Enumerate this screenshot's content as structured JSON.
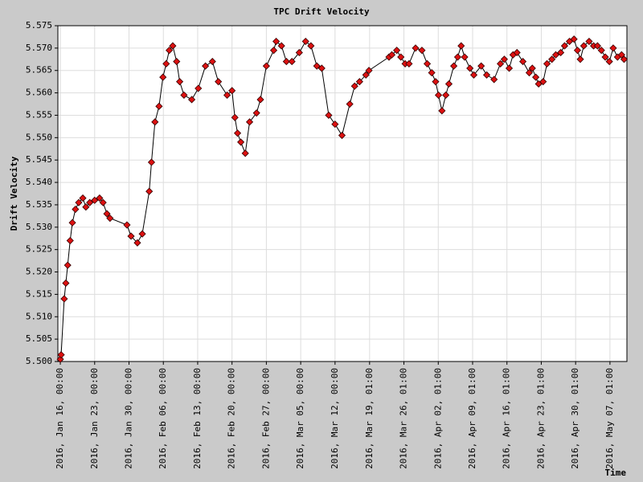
{
  "chart_data": {
    "type": "line",
    "title": "TPC Drift Velocity",
    "y_label": "Drift Velocity",
    "x_label": "Time",
    "color": "#dd1111",
    "line_color": "#000000",
    "grid": true,
    "xlim": [
      "2016-01-15T12:00",
      "2016-05-10T12:00"
    ],
    "ylim": [
      5.5,
      5.575
    ],
    "yticks": [
      {
        "value": 5.5,
        "label": "5.500"
      },
      5.505,
      {
        "value": 5.51,
        "label": "5.510"
      },
      5.515,
      {
        "value": 5.52,
        "label": "5.520"
      },
      5.525,
      {
        "value": 5.53,
        "label": "5.530"
      },
      5.535,
      {
        "value": 5.54,
        "label": "5.540"
      },
      5.545,
      {
        "value": 5.55,
        "label": "5.550"
      },
      5.555,
      {
        "value": 5.56,
        "label": "5.560"
      },
      5.565,
      {
        "value": 5.57,
        "label": "5.570"
      },
      5.575
    ],
    "xticks": [
      {
        "value": "2016-01-16T00:00",
        "label": "2016, Jan 16, 00:00"
      },
      {
        "value": "2016-01-23T00:00",
        "label": "2016, Jan 23, 00:00"
      },
      {
        "value": "2016-01-30T00:00",
        "label": "2016, Jan 30, 00:00"
      },
      {
        "value": "2016-02-06T00:00",
        "label": "2016, Feb 06, 00:00"
      },
      {
        "value": "2016-02-13T00:00",
        "label": "2016, Feb 13, 00:00"
      },
      {
        "value": "2016-02-20T00:00",
        "label": "2016, Feb 20, 00:00"
      },
      {
        "value": "2016-02-27T00:00",
        "label": "2016, Feb 27, 00:00"
      },
      {
        "value": "2016-03-05T00:00",
        "label": "2016, Mar 05, 00:00"
      },
      {
        "value": "2016-03-12T00:00",
        "label": "2016, Mar 12, 00:00"
      },
      {
        "value": "2016-03-19T01:00",
        "label": "2016, Mar 19, 01:00"
      },
      {
        "value": "2016-03-26T01:00",
        "label": "2016, Mar 26, 01:00"
      },
      {
        "value": "2016-04-02T01:00",
        "label": "2016, Apr 02, 01:00"
      },
      {
        "value": "2016-04-09T01:00",
        "label": "2016, Apr 09, 01:00"
      },
      {
        "value": "2016-04-16T01:00",
        "label": "2016, Apr 16, 01:00"
      },
      {
        "value": "2016-04-23T01:00",
        "label": "2016, Apr 23, 01:00"
      },
      {
        "value": "2016-04-30T01:00",
        "label": "2016, Apr 30, 01:00"
      },
      {
        "value": "2016-05-07T01:00",
        "label": "2016, May 07, 01:00"
      }
    ],
    "x": [
      "2016-01-16T00:00",
      "2016-01-16T04:00",
      "2016-01-16T19:00",
      "2016-01-17T03:00",
      "2016-01-17T12:00",
      "2016-01-18T00:00",
      "2016-01-18T11:00",
      "2016-01-19T02:00",
      "2016-01-19T18:00",
      "2016-01-20T14:00",
      "2016-01-21T05:00",
      "2016-01-22T00:00",
      "2016-01-23T00:00",
      "2016-01-24T00:00",
      "2016-01-24T17:00",
      "2016-01-25T12:00",
      "2016-01-26T03:00",
      "2016-01-29T14:00",
      "2016-01-30T10:00",
      "2016-01-31T17:00",
      "2016-02-01T17:00",
      "2016-02-03T03:00",
      "2016-02-03T14:00",
      "2016-02-04T07:00",
      "2016-02-05T03:00",
      "2016-02-05T22:00",
      "2016-02-06T14:00",
      "2016-02-07T05:00",
      "2016-02-07T22:00",
      "2016-02-08T17:00",
      "2016-02-09T08:00",
      "2016-02-10T05:00",
      "2016-02-11T19:00",
      "2016-02-13T03:00",
      "2016-02-14T14:00",
      "2016-02-16T00:00",
      "2016-02-17T05:00",
      "2016-02-19T00:00",
      "2016-02-20T00:00",
      "2016-02-20T14:00",
      "2016-02-21T03:00",
      "2016-02-21T19:00",
      "2016-02-22T17:00",
      "2016-02-23T14:00",
      "2016-02-25T00:00",
      "2016-02-25T19:00",
      "2016-02-27T00:00",
      "2016-02-28T12:00",
      "2016-02-29T00:00",
      "2016-03-01T02:00",
      "2016-03-02T02:00",
      "2016-03-03T05:00",
      "2016-03-04T17:00",
      "2016-03-06T00:00",
      "2016-03-07T02:00",
      "2016-03-08T07:00",
      "2016-03-09T07:00",
      "2016-03-10T17:00",
      "2016-03-12T00:00",
      "2016-03-13T10:00",
      "2016-03-15T00:00",
      "2016-03-16T00:00",
      "2016-03-17T00:00",
      "2016-03-18T07:00",
      "2016-03-18T22:00",
      "2016-03-23T00:00",
      "2016-03-23T14:00",
      "2016-03-24T14:00",
      "2016-03-25T10:00",
      "2016-03-26T07:00",
      "2016-03-27T02:00",
      "2016-03-28T10:00",
      "2016-03-29T17:00",
      "2016-03-30T19:00",
      "2016-03-31T17:00",
      "2016-04-01T12:00",
      "2016-04-02T02:00",
      "2016-04-02T19:00",
      "2016-04-03T14:00",
      "2016-04-04T05:00",
      "2016-04-05T05:00",
      "2016-04-06T00:00",
      "2016-04-06T17:00",
      "2016-04-07T10:00",
      "2016-04-08T12:00",
      "2016-04-09T07:00",
      "2016-04-10T19:00",
      "2016-04-11T22:00",
      "2016-04-13T10:00",
      "2016-04-14T17:00",
      "2016-04-15T12:00",
      "2016-04-16T12:00",
      "2016-04-17T07:00",
      "2016-04-18T02:00",
      "2016-04-19T07:00",
      "2016-04-20T14:00",
      "2016-04-21T05:00",
      "2016-04-21T22:00",
      "2016-04-22T12:00",
      "2016-04-23T10:00",
      "2016-04-24T05:00",
      "2016-04-25T05:00",
      "2016-04-26T00:00",
      "2016-04-27T00:00",
      "2016-04-27T19:00",
      "2016-04-28T19:00",
      "2016-04-29T17:00",
      "2016-04-30T10:00",
      "2016-05-01T00:00",
      "2016-05-01T17:00",
      "2016-05-02T19:00",
      "2016-05-03T17:00",
      "2016-05-04T12:00",
      "2016-05-05T07:00",
      "2016-05-06T02:00",
      "2016-05-06T22:00",
      "2016-05-07T17:00",
      "2016-05-08T14:00",
      "2016-05-09T10:00",
      "2016-05-09T22:00"
    ],
    "values": [
      5.5005,
      5.5015,
      5.514,
      5.5175,
      5.5215,
      5.527,
      5.531,
      5.534,
      5.5355,
      5.5365,
      5.5345,
      5.5355,
      5.536,
      5.5365,
      5.5355,
      5.533,
      5.532,
      5.5305,
      5.528,
      5.5265,
      5.5285,
      5.538,
      5.5445,
      5.5535,
      5.557,
      5.5635,
      5.5665,
      5.5695,
      5.5705,
      5.567,
      5.5625,
      5.5595,
      5.5585,
      5.561,
      5.566,
      5.567,
      5.5625,
      5.5595,
      5.5605,
      5.5545,
      5.551,
      5.549,
      5.5465,
      5.5535,
      5.5555,
      5.5585,
      5.566,
      5.5695,
      5.5715,
      5.5705,
      5.567,
      5.567,
      5.569,
      5.5715,
      5.5705,
      5.566,
      5.5655,
      5.555,
      5.553,
      5.5505,
      5.5575,
      5.5615,
      5.5625,
      5.564,
      5.565,
      5.568,
      5.5685,
      5.5695,
      5.568,
      5.5665,
      5.5665,
      5.57,
      5.5695,
      5.5665,
      5.5645,
      5.5625,
      5.5595,
      5.556,
      5.5595,
      5.562,
      5.566,
      5.568,
      5.5705,
      5.568,
      5.5655,
      5.564,
      5.566,
      5.564,
      5.563,
      5.5665,
      5.5675,
      5.5655,
      5.5685,
      5.569,
      5.567,
      5.5645,
      5.5655,
      5.5635,
      5.562,
      5.5625,
      5.5665,
      5.5675,
      5.5685,
      5.569,
      5.5705,
      5.5715,
      5.572,
      5.5695,
      5.5675,
      5.5705,
      5.5715,
      5.5705,
      5.5705,
      5.5695,
      5.568,
      5.567,
      5.57,
      5.568,
      5.5685,
      5.5675
    ]
  }
}
